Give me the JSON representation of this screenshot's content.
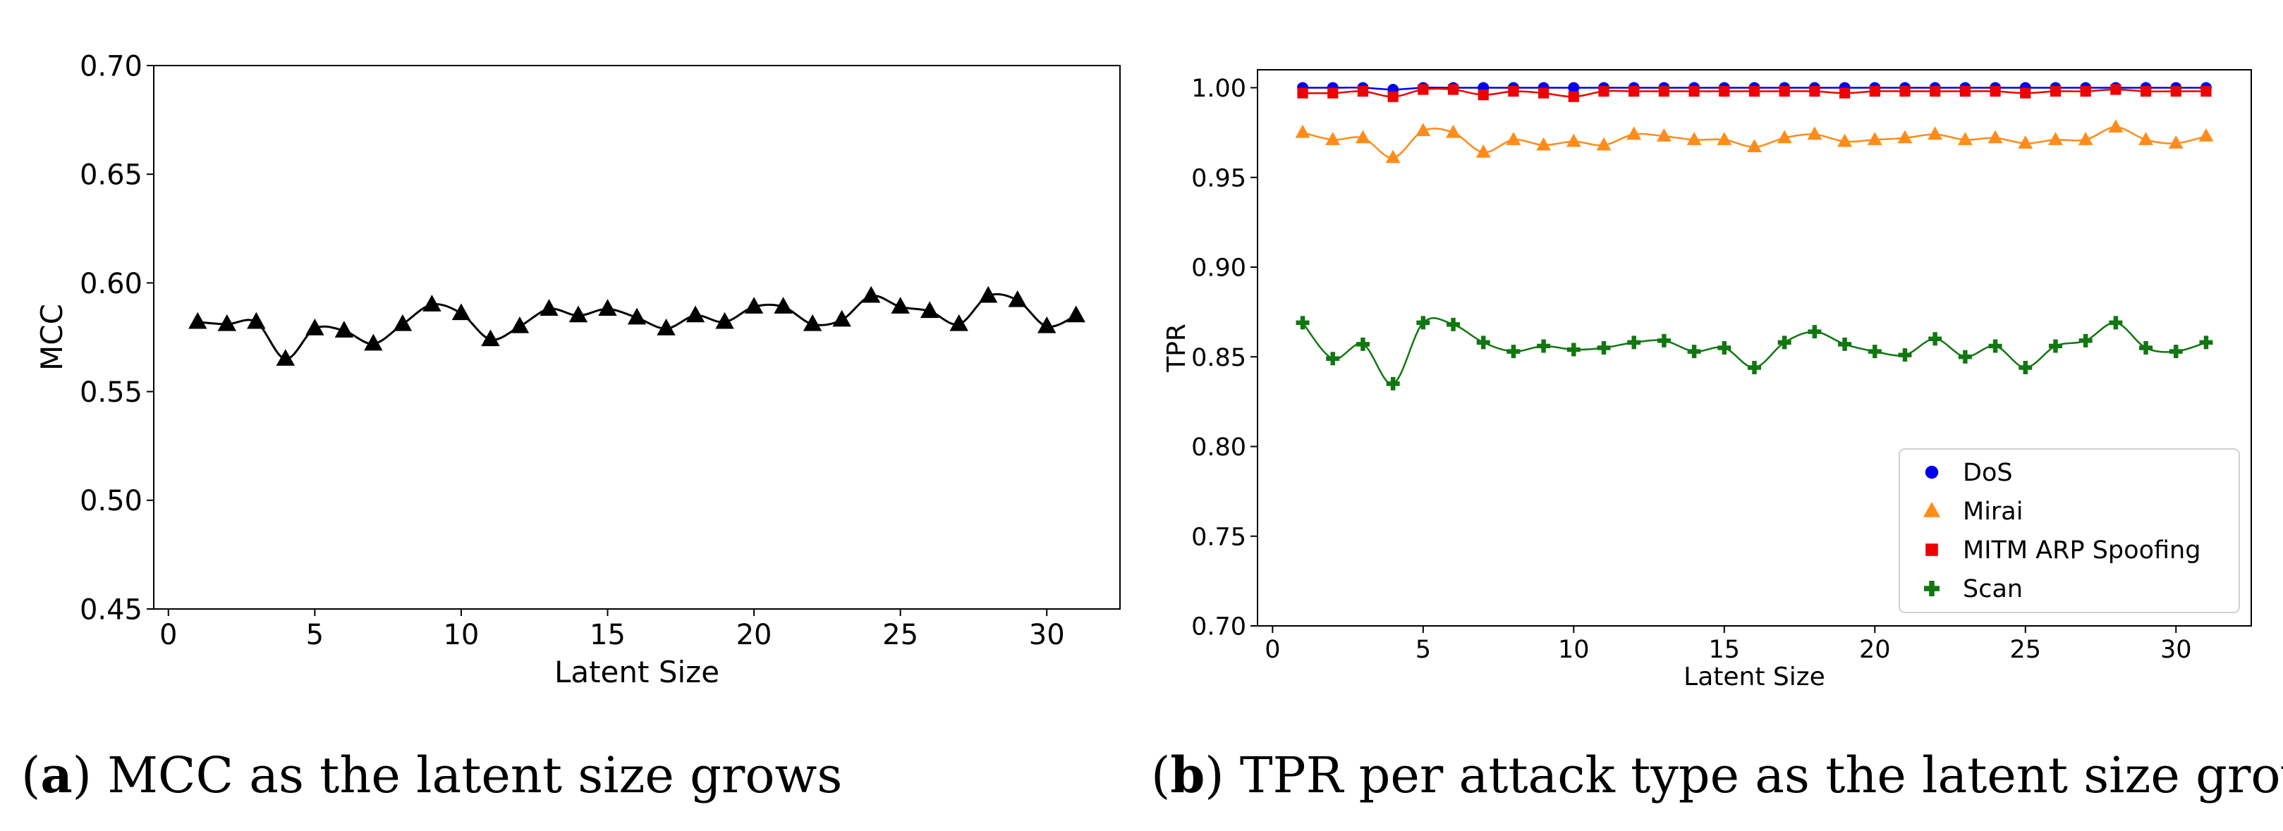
{
  "chart_data": [
    {
      "type": "line",
      "caption_label": "a",
      "caption_text": ") MCC as the latent size grows",
      "caption_paren": "(",
      "xlabel": "Latent Size",
      "ylabel": "MCC",
      "xlim": [
        -0.5,
        32.5
      ],
      "ylim": [
        0.45,
        0.7
      ],
      "xticks": [
        0,
        5,
        10,
        15,
        20,
        25,
        30
      ],
      "xtick_labels": [
        "0",
        "5",
        "10",
        "15",
        "20",
        "25",
        "30"
      ],
      "yticks": [
        0.45,
        0.5,
        0.55,
        0.6,
        0.65,
        0.7
      ],
      "ytick_labels": [
        "0.45",
        "0.50",
        "0.55",
        "0.60",
        "0.65",
        "0.70"
      ],
      "x": [
        1,
        2,
        3,
        4,
        5,
        6,
        7,
        8,
        9,
        10,
        11,
        12,
        13,
        14,
        15,
        16,
        17,
        18,
        19,
        20,
        21,
        22,
        23,
        24,
        25,
        26,
        27,
        28,
        29,
        30,
        31
      ],
      "series": [
        {
          "name": "MCC",
          "color": "#000000",
          "marker": "triangle",
          "values": [
            0.582,
            0.581,
            0.582,
            0.565,
            0.579,
            0.578,
            0.572,
            0.581,
            0.59,
            0.586,
            0.574,
            0.58,
            0.588,
            0.585,
            0.588,
            0.584,
            0.579,
            0.585,
            0.582,
            0.589,
            0.589,
            0.581,
            0.583,
            0.594,
            0.589,
            0.587,
            0.581,
            0.594,
            0.592,
            0.58,
            0.585
          ]
        }
      ]
    },
    {
      "type": "line",
      "caption_label": "b",
      "caption_text": ") TPR per attack type as the latent size grows",
      "caption_paren": "(",
      "xlabel": "Latent Size",
      "ylabel": "TPR",
      "xlim": [
        -0.5,
        32.5
      ],
      "ylim": [
        0.7,
        1.01
      ],
      "xticks": [
        0,
        5,
        10,
        15,
        20,
        25,
        30
      ],
      "xtick_labels": [
        "0",
        "5",
        "10",
        "15",
        "20",
        "25",
        "30"
      ],
      "yticks": [
        0.7,
        0.75,
        0.8,
        0.85,
        0.9,
        0.95,
        1.0
      ],
      "ytick_labels": [
        "0.70",
        "0.75",
        "0.80",
        "0.85",
        "0.90",
        "0.95",
        "1.00"
      ],
      "legend_position": "lower-right",
      "x": [
        1,
        2,
        3,
        4,
        5,
        6,
        7,
        8,
        9,
        10,
        11,
        12,
        13,
        14,
        15,
        16,
        17,
        18,
        19,
        20,
        21,
        22,
        23,
        24,
        25,
        26,
        27,
        28,
        29,
        30,
        31
      ],
      "series": [
        {
          "name": "DoS",
          "color": "#0000ee",
          "marker": "circle",
          "values": [
            1.0,
            1.0,
            1.0,
            0.999,
            1.0,
            1.0,
            1.0,
            1.0,
            1.0,
            1.0,
            1.0,
            1.0,
            1.0,
            1.0,
            1.0,
            1.0,
            1.0,
            1.0,
            1.0,
            1.0,
            1.0,
            1.0,
            1.0,
            1.0,
            1.0,
            1.0,
            1.0,
            1.0,
            1.0,
            1.0,
            1.0
          ]
        },
        {
          "name": "Mirai",
          "color": "#ff8c1a",
          "marker": "triangle",
          "values": [
            0.975,
            0.971,
            0.972,
            0.961,
            0.976,
            0.975,
            0.964,
            0.971,
            0.968,
            0.97,
            0.968,
            0.974,
            0.973,
            0.971,
            0.971,
            0.967,
            0.972,
            0.974,
            0.97,
            0.971,
            0.972,
            0.974,
            0.971,
            0.972,
            0.969,
            0.971,
            0.971,
            0.978,
            0.971,
            0.969,
            0.973
          ]
        },
        {
          "name": "MITM ARP Spoofing",
          "color": "#ee0000",
          "marker": "square",
          "values": [
            0.997,
            0.997,
            0.998,
            0.995,
            0.999,
            0.999,
            0.996,
            0.998,
            0.997,
            0.995,
            0.998,
            0.998,
            0.998,
            0.998,
            0.998,
            0.998,
            0.998,
            0.998,
            0.997,
            0.998,
            0.998,
            0.998,
            0.998,
            0.998,
            0.997,
            0.998,
            0.998,
            0.999,
            0.998,
            0.998,
            0.998
          ]
        },
        {
          "name": "Scan",
          "color": "#117711",
          "marker": "plus",
          "values": [
            0.869,
            0.849,
            0.857,
            0.835,
            0.869,
            0.868,
            0.858,
            0.853,
            0.856,
            0.854,
            0.855,
            0.858,
            0.859,
            0.853,
            0.855,
            0.844,
            0.858,
            0.864,
            0.857,
            0.853,
            0.851,
            0.86,
            0.85,
            0.856,
            0.844,
            0.856,
            0.859,
            0.869,
            0.855,
            0.853,
            0.858
          ]
        }
      ]
    }
  ]
}
